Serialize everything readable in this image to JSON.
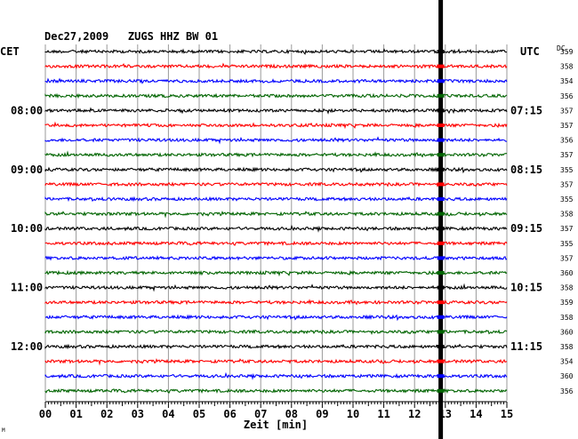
{
  "chart_data": {
    "type": "line",
    "title": "Dec27,2009   ZUGS HHZ BW 01",
    "left_timezone": "CET",
    "right_timezone": "UTC",
    "dc_label": "DC",
    "xlabel": "Zeit [min]",
    "xlim": [
      0,
      15
    ],
    "x_ticks": [
      "00",
      "01",
      "02",
      "03",
      "04",
      "05",
      "06",
      "07",
      "08",
      "09",
      "10",
      "11",
      "12",
      "13",
      "14",
      "15"
    ],
    "left_hour_labels": [
      {
        "row": 4,
        "text": "08:00"
      },
      {
        "row": 8,
        "text": "09:00"
      },
      {
        "row": 12,
        "text": "10:00"
      },
      {
        "row": 16,
        "text": "11:00"
      },
      {
        "row": 20,
        "text": "12:00"
      }
    ],
    "right_hour_labels": [
      {
        "row": 4,
        "text": "07:15"
      },
      {
        "row": 8,
        "text": "08:15"
      },
      {
        "row": 12,
        "text": "09:15"
      },
      {
        "row": 16,
        "text": "10:15"
      },
      {
        "row": 20,
        "text": "11:15"
      }
    ],
    "dc_values": [
      "359",
      "358",
      "354",
      "356",
      "357",
      "357",
      "356",
      "357",
      "355",
      "357",
      "355",
      "358",
      "357",
      "355",
      "357",
      "360",
      "358",
      "359",
      "358",
      "360",
      "358",
      "354",
      "360",
      "356"
    ],
    "trace_colors": [
      "#000000",
      "#ff0000",
      "#0000ff",
      "#006400"
    ],
    "event_minute": 12.85,
    "corner_mark": "M"
  }
}
